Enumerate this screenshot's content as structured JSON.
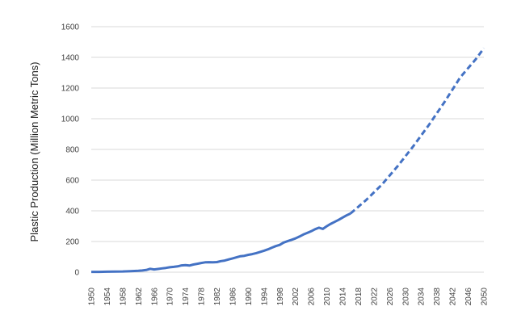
{
  "chart_data": {
    "type": "line",
    "title": "",
    "xlabel": "",
    "ylabel": "Plastic Production (Million Metric Tons)",
    "xlim": [
      1950,
      2050
    ],
    "ylim": [
      0,
      1600
    ],
    "grid": "horizontal",
    "legend": "none",
    "x_ticks": [
      "1950",
      "1954",
      "1958",
      "1962",
      "1966",
      "1970",
      "1974",
      "1978",
      "1982",
      "1986",
      "1990",
      "1994",
      "1998",
      "2002",
      "2006",
      "2010",
      "2014",
      "2018",
      "2022",
      "2026",
      "2030",
      "2034",
      "2038",
      "2042",
      "2046",
      "2050"
    ],
    "y_ticks": [
      "0",
      "200",
      "400",
      "600",
      "800",
      "1000",
      "1200",
      "1400",
      "1600"
    ],
    "colors": {
      "line": "#4472c4",
      "grid": "#d9d9d9"
    },
    "series": [
      {
        "style": "solid",
        "x": [
          1950,
          1952,
          1954,
          1956,
          1958,
          1960,
          1962,
          1963,
          1964,
          1965,
          1966,
          1967,
          1968,
          1969,
          1970,
          1971,
          1972,
          1973,
          1974,
          1975,
          1976,
          1977,
          1978,
          1979,
          1980,
          1981,
          1982,
          1983,
          1984,
          1985,
          1986,
          1987,
          1988,
          1989,
          1990,
          1991,
          1992,
          1993,
          1994,
          1995,
          1996,
          1997,
          1998,
          1999,
          2000,
          2001,
          2002,
          2003,
          2004,
          2005,
          2006,
          2007,
          2008,
          2009,
          2010,
          2011,
          2012,
          2013,
          2014,
          2015,
          2016
        ],
        "y": [
          2,
          2,
          3,
          4,
          5,
          7,
          9,
          11,
          14,
          22,
          18,
          21,
          25,
          28,
          32,
          35,
          38,
          44,
          46,
          43,
          50,
          55,
          60,
          64,
          65,
          64,
          66,
          72,
          76,
          83,
          90,
          97,
          104,
          107,
          113,
          118,
          124,
          132,
          140,
          149,
          160,
          170,
          178,
          193,
          202,
          211,
          220,
          232,
          245,
          256,
          267,
          280,
          290,
          282,
          300,
          315,
          328,
          341,
          356,
          370,
          382
        ]
      },
      {
        "style": "dashed",
        "x": [
          2016,
          2020,
          2024,
          2028,
          2032,
          2036,
          2040,
          2044,
          2048,
          2050
        ],
        "y": [
          382,
          470,
          570,
          690,
          820,
          960,
          1110,
          1270,
          1390,
          1460
        ]
      }
    ]
  }
}
